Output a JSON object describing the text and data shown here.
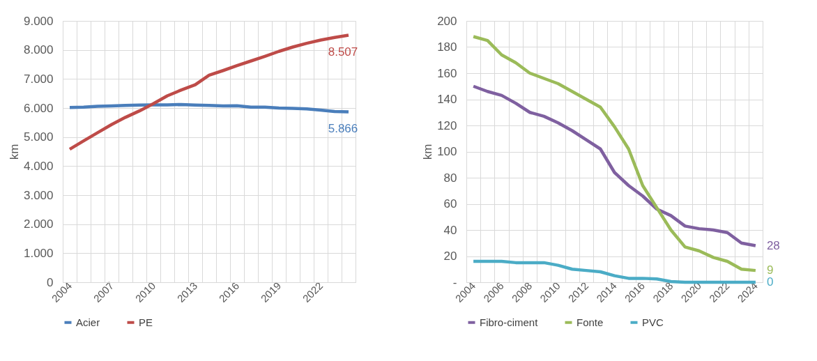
{
  "chart_data": [
    {
      "type": "line",
      "ylabel": "km",
      "categories": [
        "2004",
        null,
        null,
        "2007",
        null,
        null,
        "2010",
        null,
        null,
        "2013",
        null,
        null,
        "2016",
        null,
        null,
        "2019",
        null,
        null,
        "2022",
        null,
        null
      ],
      "series": [
        {
          "name": "Acier",
          "color": "#4a7ebb",
          "values": [
            6020,
            6030,
            6060,
            6070,
            6090,
            6100,
            6110,
            6110,
            6120,
            6100,
            6090,
            6070,
            6080,
            6030,
            6030,
            6000,
            5990,
            5970,
            5930,
            5880,
            5866
          ],
          "value_labels": [
            null,
            null,
            null,
            null,
            null,
            null,
            null,
            null,
            null,
            null,
            null,
            null,
            null,
            null,
            null,
            null,
            null,
            null,
            null,
            null,
            "5.866"
          ]
        },
        {
          "name": "PE",
          "color": "#be4b48",
          "values": [
            4580,
            4870,
            5150,
            5430,
            5680,
            5900,
            6150,
            6420,
            6620,
            6800,
            7130,
            7290,
            7460,
            7620,
            7780,
            7950,
            8100,
            8230,
            8340,
            8430,
            8507
          ],
          "value_labels": [
            null,
            null,
            null,
            null,
            null,
            null,
            null,
            null,
            null,
            null,
            null,
            null,
            null,
            null,
            null,
            null,
            null,
            null,
            null,
            null,
            "8.507"
          ]
        }
      ],
      "ylim": [
        0,
        9000
      ],
      "yticks": [
        0,
        {
          "value": 1000,
          "label": "1.000"
        },
        {
          "value": 2000,
          "label": "2.000"
        },
        {
          "value": 3000,
          "label": "3.000"
        },
        {
          "value": 4000,
          "label": "4.000"
        },
        {
          "value": 5000,
          "label": "5.000"
        },
        {
          "value": 6000,
          "label": "6.000"
        },
        {
          "value": 7000,
          "label": "7.000"
        },
        {
          "value": 8000,
          "label": "8.000"
        },
        {
          "value": 9000,
          "label": "9.000"
        }
      ],
      "grid": true,
      "legend": "bottom",
      "marker": "none",
      "line_style": "solid"
    },
    {
      "type": "line",
      "ylabel": "km",
      "categories": [
        "2004",
        null,
        "2006",
        null,
        "2008",
        null,
        "2010",
        null,
        "2012",
        null,
        "2014",
        null,
        "2016",
        null,
        "2018",
        null,
        "2020",
        null,
        "2022",
        null,
        "2024"
      ],
      "series": [
        {
          "name": "Fibro-ciment",
          "color": "#7f60a0",
          "values": [
            150,
            146,
            143,
            137,
            130,
            127,
            122,
            116,
            109,
            102,
            84,
            74,
            66,
            56,
            51,
            43,
            41,
            40,
            38,
            30,
            28
          ],
          "value_labels": [
            null,
            null,
            null,
            null,
            null,
            null,
            null,
            null,
            null,
            null,
            null,
            null,
            null,
            null,
            null,
            null,
            null,
            null,
            null,
            null,
            "28"
          ]
        },
        {
          "name": "Fonte",
          "color": "#9bbb59",
          "values": [
            188,
            185,
            174,
            168,
            160,
            156,
            152,
            146,
            140,
            134,
            119,
            102,
            74,
            57,
            40,
            27,
            24,
            19,
            16,
            10,
            9
          ],
          "value_labels": [
            null,
            null,
            null,
            null,
            null,
            null,
            null,
            null,
            null,
            null,
            null,
            null,
            null,
            null,
            null,
            null,
            null,
            null,
            null,
            null,
            "9"
          ]
        },
        {
          "name": "PVC",
          "color": "#4bacc6",
          "values": [
            16,
            16,
            16,
            15,
            15,
            15,
            13,
            10,
            9,
            8,
            5,
            3,
            3,
            2.5,
            0.5,
            0,
            0,
            0,
            0,
            0,
            0
          ],
          "value_labels": [
            null,
            null,
            null,
            null,
            null,
            null,
            null,
            null,
            null,
            null,
            null,
            null,
            null,
            null,
            null,
            null,
            null,
            null,
            null,
            null,
            "0"
          ]
        }
      ],
      "ylim": [
        0,
        200
      ],
      "yticks": [
        {
          "value": 0,
          "label": "-"
        },
        20,
        40,
        60,
        80,
        100,
        120,
        140,
        160,
        180,
        200
      ],
      "grid": true,
      "legend": "bottom",
      "marker": "none",
      "line_style": "solid"
    }
  ]
}
